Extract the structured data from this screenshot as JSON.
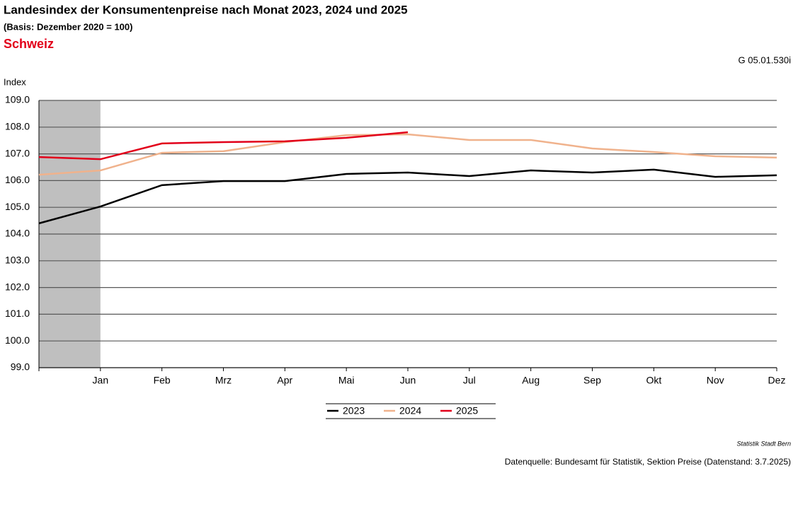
{
  "chart_data": {
    "type": "line",
    "title": "Landesindex der Konsumentenpreise nach Monat 2023, 2024 und 2025",
    "subtitle": "(Basis: Dezember 2020 = 100)",
    "region": "Schweiz",
    "code": "G 05.01.530i",
    "y_label": "Index",
    "credit": "Statistik Stadt Bern",
    "source": "Datenquelle: Bundesamt für Statistik, Sektion Preise (Datenstand: 3.7.2025)",
    "categories": [
      null,
      "Jan",
      "Feb",
      "Mrz",
      "Apr",
      "Mai",
      "Jun",
      "Jul",
      "Aug",
      "Sep",
      "Okt",
      "Nov",
      "Dez"
    ],
    "series": [
      {
        "name": "2023",
        "color": "#000000",
        "values": [
          104.4,
          105.03,
          105.83,
          105.98,
          105.98,
          106.25,
          106.3,
          106.17,
          106.38,
          106.3,
          106.41,
          106.14,
          106.2
        ]
      },
      {
        "name": "2024",
        "color": "#f0b28c",
        "values": [
          106.22,
          106.38,
          107.04,
          107.1,
          107.44,
          107.7,
          107.73,
          107.52,
          107.52,
          107.2,
          107.07,
          106.91,
          106.86
        ]
      },
      {
        "name": "2025",
        "color": "#e2001a",
        "values": [
          106.88,
          106.8,
          107.39,
          107.44,
          107.47,
          107.6,
          107.81,
          null,
          null,
          null,
          null,
          null,
          null
        ]
      }
    ],
    "ylim": [
      99,
      109
    ],
    "yticks": [
      {
        "value": 99,
        "label": "99.0"
      },
      {
        "value": 100,
        "label": "100.0"
      },
      {
        "value": 101,
        "label": "101.0"
      },
      {
        "value": 102,
        "label": "102.0"
      },
      {
        "value": 103,
        "label": "103.0"
      },
      {
        "value": 104,
        "label": "104.0"
      },
      {
        "value": 105,
        "label": "105.0"
      },
      {
        "value": 106,
        "label": "106.0"
      },
      {
        "value": 107,
        "label": "107.0"
      },
      {
        "value": 108,
        "label": "108.0"
      },
      {
        "value": 109,
        "label": "109.0"
      }
    ],
    "grid": true,
    "legend": "bottom"
  }
}
